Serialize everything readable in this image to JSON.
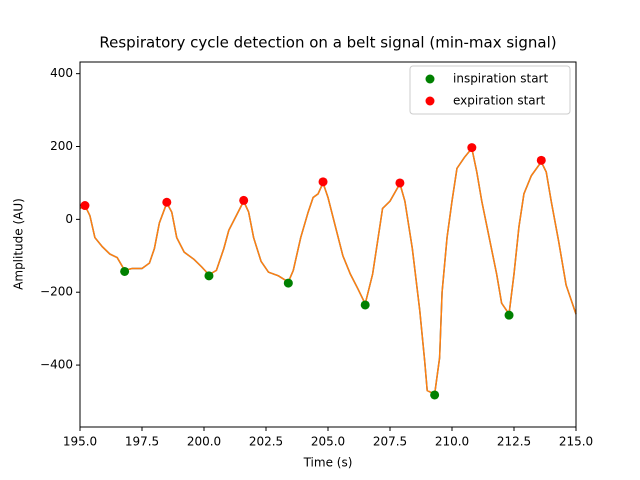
{
  "chart_data": {
    "type": "scatter",
    "title": "Respiratory cycle detection on a belt signal (min-max signal)",
    "xlabel": "Time (s)",
    "ylabel": "Amplitude (AU)",
    "xlim": [
      195,
      215
    ],
    "ylim": [
      -570,
      432
    ],
    "xticks": [
      {
        "value": 195,
        "label": "195.0"
      },
      {
        "value": 197.5,
        "label": "197.5"
      },
      {
        "value": 200,
        "label": "200.0"
      },
      {
        "value": 202.5,
        "label": "202.5"
      },
      {
        "value": 205,
        "label": "205.0"
      },
      {
        "value": 207.5,
        "label": "207.5"
      },
      {
        "value": 210,
        "label": "210.0"
      },
      {
        "value": 212.5,
        "label": "212.5"
      },
      {
        "value": 215,
        "label": "215.0"
      }
    ],
    "yticks": [
      {
        "value": -400,
        "label": "−400"
      },
      {
        "value": -200,
        "label": "−200"
      },
      0,
      200,
      400
    ],
    "legend": "upper right",
    "signal": {
      "colors": [
        "#1f77b4",
        "#ff7f0e"
      ],
      "x": [
        195.0,
        195.2,
        195.4,
        195.6,
        195.9,
        196.2,
        196.5,
        196.8,
        197.1,
        197.5,
        197.8,
        198.0,
        198.2,
        198.5,
        198.7,
        198.9,
        199.2,
        199.6,
        199.9,
        200.2,
        200.5,
        200.8,
        201.0,
        201.3,
        201.6,
        201.8,
        202.0,
        202.3,
        202.6,
        203.0,
        203.4,
        203.6,
        203.9,
        204.2,
        204.4,
        204.6,
        204.8,
        205.0,
        205.3,
        205.6,
        205.9,
        206.2,
        206.5,
        206.8,
        207.0,
        207.2,
        207.5,
        207.9,
        208.1,
        208.4,
        208.7,
        208.9,
        209.0,
        209.3,
        209.5,
        209.6,
        209.8,
        210.0,
        210.2,
        210.5,
        210.8,
        211.0,
        211.2,
        211.5,
        211.8,
        212.0,
        212.3,
        212.5,
        212.7,
        212.9,
        213.2,
        213.6,
        213.8,
        214.0,
        214.3,
        214.6,
        215.0
      ],
      "y": [
        30,
        38,
        10,
        -50,
        -75,
        -95,
        -105,
        -140,
        -135,
        -135,
        -120,
        -80,
        -10,
        45,
        20,
        -50,
        -90,
        -110,
        -130,
        -152,
        -140,
        -80,
        -30,
        10,
        50,
        20,
        -50,
        -115,
        -145,
        -155,
        -172,
        -140,
        -50,
        20,
        60,
        70,
        100,
        60,
        -20,
        -100,
        -150,
        -190,
        -232,
        -150,
        -60,
        30,
        50,
        98,
        50,
        -80,
        -250,
        -390,
        -470,
        -480,
        -380,
        -200,
        -50,
        50,
        140,
        170,
        195,
        130,
        50,
        -50,
        -150,
        -230,
        -260,
        -150,
        -20,
        70,
        120,
        158,
        130,
        50,
        -60,
        -180,
        -260
      ]
    },
    "series": [
      {
        "name": "inspiration start",
        "color": "green",
        "x": [
          196.8,
          200.2,
          203.4,
          206.5,
          209.3,
          212.3
        ],
        "values": [
          -143,
          -155,
          -175,
          -235,
          -482,
          -263
        ]
      },
      {
        "name": "expiration start",
        "color": "red",
        "x": [
          195.2,
          198.5,
          201.6,
          204.8,
          207.9,
          210.8,
          213.6
        ],
        "values": [
          38,
          47,
          52,
          103,
          100,
          197,
          162
        ]
      }
    ]
  }
}
